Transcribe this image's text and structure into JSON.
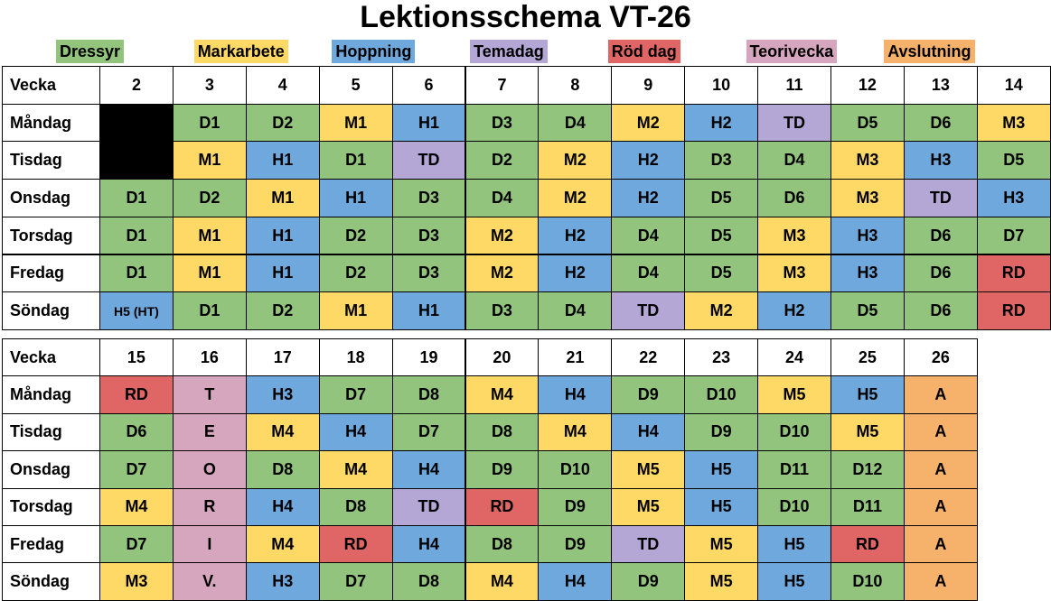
{
  "title": "Lektionsschema VT-26",
  "legend": [
    {
      "label": "Dressyr",
      "color": "#93c47d"
    },
    {
      "label": "Markarbete",
      "color": "#ffd966"
    },
    {
      "label": "Hoppning",
      "color": "#6fa8dc"
    },
    {
      "label": "Temadag",
      "color": "#b4a7d6"
    },
    {
      "label": "Röd dag",
      "color": "#e06666"
    },
    {
      "label": "Teorivecka",
      "color": "#d5a6bd"
    },
    {
      "label": "Avslutning",
      "color": "#f6b26b"
    }
  ],
  "tables": [
    {
      "header": {
        "label": "Vecka",
        "weeks": [
          2,
          3,
          4,
          5,
          6,
          7,
          8,
          9,
          10,
          11,
          12,
          13,
          14
        ]
      },
      "rows": [
        {
          "day": "Måndag",
          "cells": [
            null,
            "D1",
            "D2",
            "M1",
            "H1",
            "D3",
            "D4",
            "M2",
            "H2",
            "TD",
            "D5",
            "D6",
            "M3"
          ],
          "fills": [
            null,
            0,
            0,
            1,
            2,
            0,
            0,
            1,
            2,
            3,
            0,
            0,
            1
          ]
        },
        {
          "day": "Tisdag",
          "cells": [
            null,
            "M1",
            "H1",
            "D1",
            "TD",
            "D2",
            "M2",
            "H2",
            "D3",
            "D4",
            "M3",
            "H3",
            "D5"
          ],
          "fills": [
            null,
            1,
            2,
            0,
            3,
            0,
            1,
            2,
            0,
            0,
            1,
            2,
            0
          ]
        },
        {
          "day": "Onsdag",
          "cells": [
            "D1",
            "D2",
            "M1",
            "H1",
            "D3",
            "D4",
            "M2",
            "H2",
            "D5",
            "D6",
            "M3",
            "TD",
            "H3"
          ],
          "fills": [
            0,
            0,
            1,
            2,
            0,
            0,
            1,
            2,
            0,
            0,
            1,
            3,
            2
          ]
        },
        {
          "day": "Torsdag",
          "cells": [
            "D1",
            "M1",
            "H1",
            "D2",
            "D3",
            "M2",
            "H2",
            "D4",
            "D5",
            "M3",
            "H3",
            "D6",
            "D7"
          ],
          "fills": [
            0,
            1,
            2,
            0,
            0,
            1,
            2,
            0,
            0,
            1,
            2,
            0,
            0
          ]
        },
        {
          "day": "Fredag",
          "cells": [
            "D1",
            "M1",
            "H1",
            "D2",
            "D3",
            "M2",
            "H2",
            "D4",
            "D5",
            "M3",
            "H3",
            "D6",
            "RD"
          ],
          "fills": [
            0,
            1,
            2,
            0,
            0,
            1,
            2,
            0,
            0,
            1,
            2,
            0,
            4
          ]
        },
        {
          "day": "Söndag",
          "cells": [
            "H5 (HT)",
            "D1",
            "D2",
            "M1",
            "H1",
            "D3",
            "D4",
            "TD",
            "M2",
            "H2",
            "D5",
            "D6",
            "RD"
          ],
          "fills": [
            2,
            0,
            0,
            1,
            2,
            0,
            0,
            3,
            1,
            2,
            0,
            0,
            4
          ]
        }
      ]
    },
    {
      "header": {
        "label": "Vecka",
        "weeks": [
          15,
          16,
          17,
          18,
          19,
          20,
          21,
          22,
          23,
          24,
          25,
          26
        ]
      },
      "rows": [
        {
          "day": "Måndag",
          "cells": [
            "RD",
            "T",
            "H3",
            "D7",
            "D8",
            "M4",
            "H4",
            "D9",
            "D10",
            "M5",
            "H5",
            "A"
          ],
          "fills": [
            4,
            5,
            2,
            0,
            0,
            1,
            2,
            0,
            0,
            1,
            2,
            6
          ]
        },
        {
          "day": "Tisdag",
          "cells": [
            "D6",
            "E",
            "M4",
            "H4",
            "D7",
            "D8",
            "M4",
            "H4",
            "D9",
            "D10",
            "M5",
            "A"
          ],
          "fills": [
            0,
            5,
            1,
            2,
            0,
            0,
            1,
            2,
            0,
            0,
            1,
            6
          ]
        },
        {
          "day": "Onsdag",
          "cells": [
            "D7",
            "O",
            "D8",
            "M4",
            "H4",
            "D9",
            "D10",
            "M5",
            "H5",
            "D11",
            "D12",
            "A"
          ],
          "fills": [
            0,
            5,
            0,
            1,
            2,
            0,
            0,
            1,
            2,
            0,
            0,
            6
          ]
        },
        {
          "day": "Torsdag",
          "cells": [
            "M4",
            "R",
            "H4",
            "D8",
            "TD",
            "RD",
            "D9",
            "M5",
            "H5",
            "D10",
            "D11",
            "A"
          ],
          "fills": [
            1,
            5,
            2,
            0,
            3,
            4,
            0,
            1,
            2,
            0,
            0,
            6
          ]
        },
        {
          "day": "Fredag",
          "cells": [
            "D7",
            "I",
            "M4",
            "RD",
            "H4",
            "D8",
            "D9",
            "TD",
            "M5",
            "H5",
            "RD",
            "A"
          ],
          "fills": [
            0,
            5,
            1,
            4,
            2,
            0,
            0,
            3,
            1,
            2,
            4,
            6
          ]
        },
        {
          "day": "Söndag",
          "cells": [
            "M3",
            "V.",
            "H3",
            "D7",
            "D8",
            "M4",
            "H4",
            "D9",
            "M5",
            "H5",
            "D10",
            "A"
          ],
          "fills": [
            1,
            5,
            2,
            0,
            0,
            1,
            2,
            0,
            1,
            2,
            0,
            6
          ]
        }
      ]
    }
  ]
}
